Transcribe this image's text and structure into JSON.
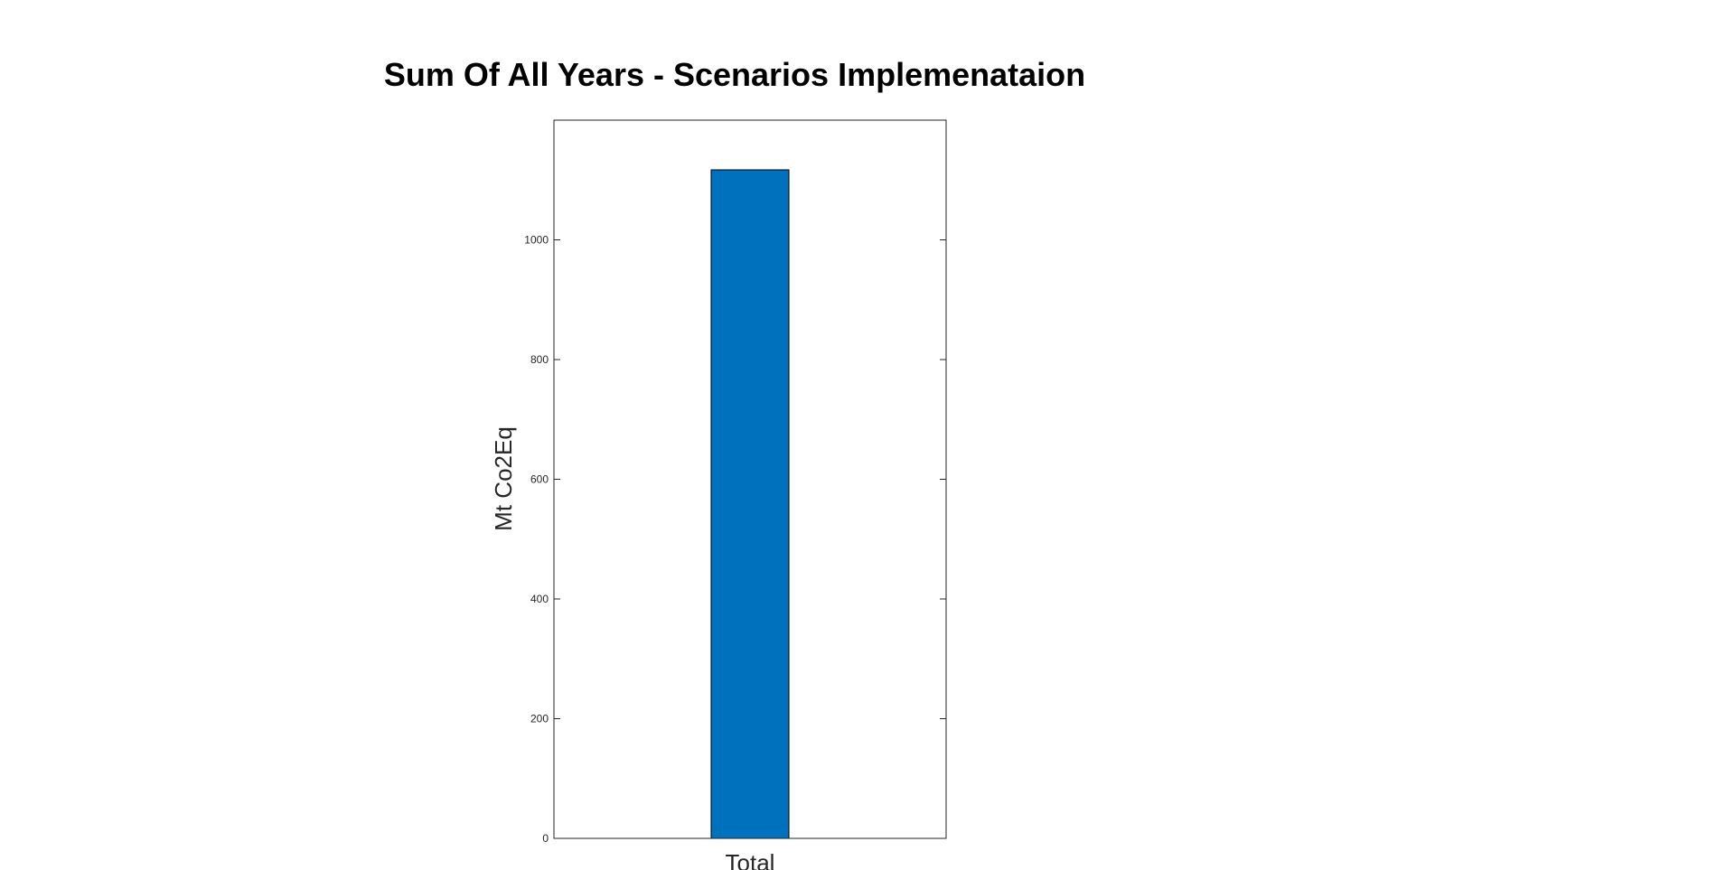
{
  "chart_data": {
    "type": "bar",
    "title": "Sum Of All Years - Scenarios Implemenataion",
    "xlabel": "",
    "ylabel": "Mt Co2Eq",
    "categories": [
      "Total"
    ],
    "values": [
      1117
    ],
    "ylim": [
      0,
      1200
    ],
    "yticks": [
      0,
      200,
      400,
      600,
      800,
      1000
    ],
    "ytick_labels": [
      "0",
      "200",
      "400",
      "600",
      "800",
      "1000"
    ],
    "grid": false,
    "bar_color": "#0072BD"
  }
}
